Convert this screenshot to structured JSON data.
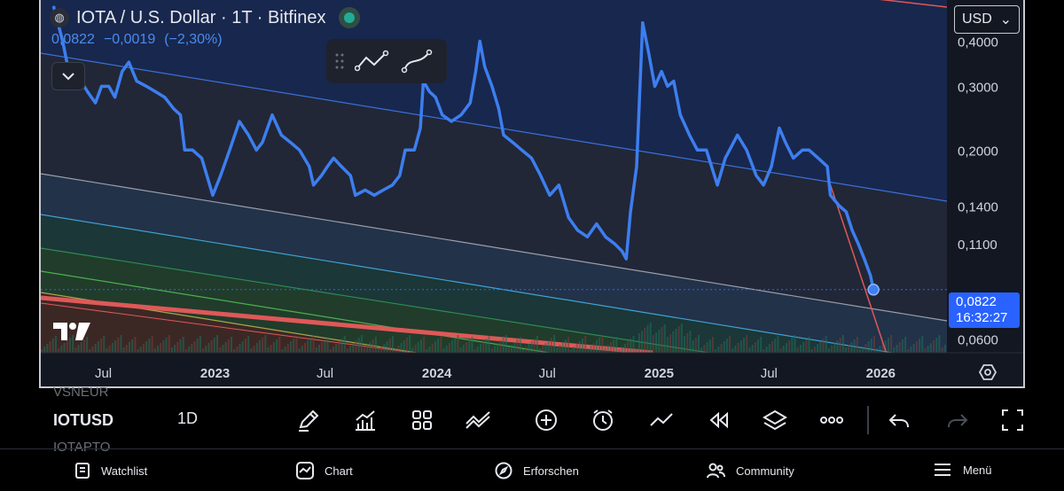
{
  "header": {
    "logo_glyph": "◍",
    "title": "IOTA / U.S. Dollar · 1T · Bitfinex",
    "last": "0,0822",
    "change": "−0,0019",
    "change_pct": "(−2,30%)"
  },
  "currency_select": {
    "value": "USD",
    "arrow": "⌄"
  },
  "price_tag": {
    "price": "0,0822",
    "countdown": "16:32:27"
  },
  "toolbar": {
    "symbol": "IOTUSD",
    "symbol_above": "VSNEUR",
    "symbol_below": "IOTAPTO",
    "interval": "1D"
  },
  "nav": {
    "watchlist": "Watchlist",
    "chart": "Chart",
    "explore": "Erforschen",
    "community": "Community",
    "menu": "Menü"
  },
  "colors": {
    "price": "#3d7ef0",
    "upper_channel": "#3a6fd8",
    "mid_channel": "#9aa0ab",
    "lower_channel": "#3fa2d6",
    "band_green": "#2e8b57",
    "band_yellow": "#a8a84a",
    "red_line": "#e05858",
    "background": "#131722"
  },
  "chart_data": {
    "type": "line",
    "scale": "log",
    "symbol": "IOTA / U.S. Dollar",
    "interval": "1T",
    "exchange": "Bitfinex",
    "y_ticks": [
      "0,4000",
      "0,3000",
      "0,2000",
      "0,1400",
      "0,1100",
      "0,0600"
    ],
    "y_tick_values": [
      0.4,
      0.3,
      0.2,
      0.14,
      0.11,
      0.06
    ],
    "x_ticks": [
      "Jul",
      "2023",
      "Jul",
      "2024",
      "Jul",
      "2025",
      "Jul",
      "2026"
    ],
    "x_tick_dates": [
      "2022-07-01",
      "2023-01-01",
      "2023-07-01",
      "2024-01-01",
      "2024-07-01",
      "2025-01-01",
      "2025-07-01",
      "2026-01-01"
    ],
    "x_range": [
      "2022-03-20",
      "2026-04-20"
    ],
    "y_range": [
      0.055,
      0.52
    ],
    "last_price": 0.0822,
    "series": [
      {
        "values": [
          [
            "2022-04-10",
            0.5
          ],
          [
            "2022-04-25",
            0.4
          ],
          [
            "2022-05-05",
            0.33
          ],
          [
            "2022-05-20",
            0.32
          ],
          [
            "2022-06-05",
            0.29
          ],
          [
            "2022-06-18",
            0.27
          ],
          [
            "2022-06-28",
            0.3
          ],
          [
            "2022-07-10",
            0.3
          ],
          [
            "2022-07-20",
            0.28
          ],
          [
            "2022-08-01",
            0.33
          ],
          [
            "2022-08-12",
            0.35
          ],
          [
            "2022-08-25",
            0.31
          ],
          [
            "2022-09-10",
            0.3
          ],
          [
            "2022-09-25",
            0.29
          ],
          [
            "2022-10-10",
            0.28
          ],
          [
            "2022-10-25",
            0.26
          ],
          [
            "2022-11-05",
            0.25
          ],
          [
            "2022-11-12",
            0.2
          ],
          [
            "2022-11-25",
            0.2
          ],
          [
            "2022-12-10",
            0.19
          ],
          [
            "2022-12-28",
            0.15
          ],
          [
            "2023-01-10",
            0.17
          ],
          [
            "2023-01-25",
            0.2
          ],
          [
            "2023-02-10",
            0.24
          ],
          [
            "2023-02-25",
            0.22
          ],
          [
            "2023-03-10",
            0.2
          ],
          [
            "2023-03-20",
            0.21
          ],
          [
            "2023-04-05",
            0.25
          ],
          [
            "2023-04-20",
            0.22
          ],
          [
            "2023-05-05",
            0.21
          ],
          [
            "2023-05-20",
            0.2
          ],
          [
            "2023-06-05",
            0.18
          ],
          [
            "2023-06-12",
            0.16
          ],
          [
            "2023-06-25",
            0.17
          ],
          [
            "2023-07-05",
            0.18
          ],
          [
            "2023-07-15",
            0.19
          ],
          [
            "2023-07-28",
            0.18
          ],
          [
            "2023-08-12",
            0.17
          ],
          [
            "2023-08-20",
            0.15
          ],
          [
            "2023-09-05",
            0.155
          ],
          [
            "2023-09-20",
            0.15
          ],
          [
            "2023-10-05",
            0.155
          ],
          [
            "2023-10-20",
            0.16
          ],
          [
            "2023-11-01",
            0.17
          ],
          [
            "2023-11-10",
            0.2
          ],
          [
            "2023-11-25",
            0.2
          ],
          [
            "2023-12-05",
            0.23
          ],
          [
            "2023-12-10",
            0.31
          ],
          [
            "2023-12-20",
            0.29
          ],
          [
            "2023-12-30",
            0.28
          ],
          [
            "2024-01-10",
            0.25
          ],
          [
            "2024-01-25",
            0.24
          ],
          [
            "2024-02-10",
            0.25
          ],
          [
            "2024-02-25",
            0.27
          ],
          [
            "2024-03-05",
            0.33
          ],
          [
            "2024-03-12",
            0.4
          ],
          [
            "2024-03-20",
            0.34
          ],
          [
            "2024-04-01",
            0.3
          ],
          [
            "2024-04-12",
            0.26
          ],
          [
            "2024-04-20",
            0.22
          ],
          [
            "2024-05-05",
            0.21
          ],
          [
            "2024-05-20",
            0.2
          ],
          [
            "2024-06-05",
            0.19
          ],
          [
            "2024-06-20",
            0.17
          ],
          [
            "2024-07-05",
            0.15
          ],
          [
            "2024-07-20",
            0.16
          ],
          [
            "2024-08-05",
            0.13
          ],
          [
            "2024-08-20",
            0.12
          ],
          [
            "2024-09-05",
            0.115
          ],
          [
            "2024-09-20",
            0.125
          ],
          [
            "2024-10-05",
            0.115
          ],
          [
            "2024-10-20",
            0.11
          ],
          [
            "2024-11-01",
            0.105
          ],
          [
            "2024-11-08",
            0.1
          ],
          [
            "2024-11-15",
            0.135
          ],
          [
            "2024-11-25",
            0.18
          ],
          [
            "2024-12-05",
            0.45
          ],
          [
            "2024-12-15",
            0.37
          ],
          [
            "2024-12-25",
            0.3
          ],
          [
            "2025-01-05",
            0.33
          ],
          [
            "2025-01-15",
            0.3
          ],
          [
            "2025-01-25",
            0.31
          ],
          [
            "2025-02-05",
            0.25
          ],
          [
            "2025-02-20",
            0.22
          ],
          [
            "2025-03-05",
            0.2
          ],
          [
            "2025-03-20",
            0.2
          ],
          [
            "2025-04-07",
            0.16
          ],
          [
            "2025-04-20",
            0.19
          ],
          [
            "2025-05-10",
            0.22
          ],
          [
            "2025-05-25",
            0.2
          ],
          [
            "2025-06-10",
            0.17
          ],
          [
            "2025-06-22",
            0.16
          ],
          [
            "2025-07-05",
            0.18
          ],
          [
            "2025-07-18",
            0.23
          ],
          [
            "2025-07-28",
            0.21
          ],
          [
            "2025-08-10",
            0.19
          ],
          [
            "2025-08-25",
            0.2
          ],
          [
            "2025-09-05",
            0.2
          ],
          [
            "2025-09-20",
            0.19
          ],
          [
            "2025-10-05",
            0.18
          ],
          [
            "2025-10-10",
            0.15
          ],
          [
            "2025-10-25",
            0.14
          ],
          [
            "2025-11-05",
            0.135
          ],
          [
            "2025-11-15",
            0.12
          ],
          [
            "2025-11-25",
            0.11
          ],
          [
            "2025-12-05",
            0.1
          ],
          [
            "2025-12-15",
            0.09
          ],
          [
            "2025-12-20",
            0.0822
          ]
        ]
      }
    ]
  }
}
